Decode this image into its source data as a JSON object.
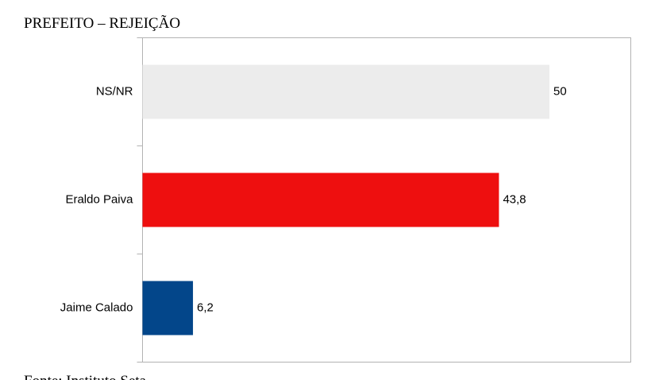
{
  "chart_data": {
    "type": "bar",
    "orientation": "horizontal",
    "title": "PREFEITO – REJEIÇÃO",
    "categories": [
      "NS/NR",
      "Eraldo Paiva",
      "Jaime Calado"
    ],
    "values": [
      50,
      43.8,
      6.2
    ],
    "value_labels": [
      "50",
      "43,8",
      "6,2"
    ],
    "colors": [
      "#ececec",
      "#ee0f0f",
      "#03468a"
    ],
    "xlim": [
      0,
      60
    ],
    "grid": false,
    "source": "Fonte: Instituto Seta"
  }
}
